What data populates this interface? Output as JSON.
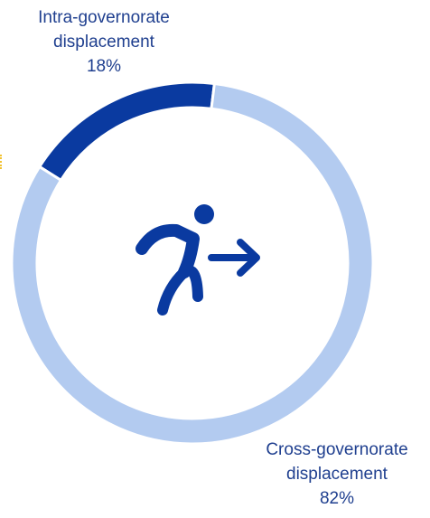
{
  "chart_data": {
    "type": "pie",
    "variant": "donut",
    "categories": [
      "Intra-governorate displacement",
      "Cross-governorate displacement"
    ],
    "values": [
      18,
      82
    ],
    "unit": "%",
    "colors": [
      "#0a3aa0",
      "#b3cbf0"
    ],
    "data_labels": [
      {
        "line1": "Intra-governorate",
        "line2": "displacement",
        "value": "18%"
      },
      {
        "line1": "Cross-governorate",
        "line2": "displacement",
        "value": "82%"
      }
    ],
    "center_icon": "running-person-arrow-icon",
    "center_icon_color": "#0a3aa0"
  }
}
